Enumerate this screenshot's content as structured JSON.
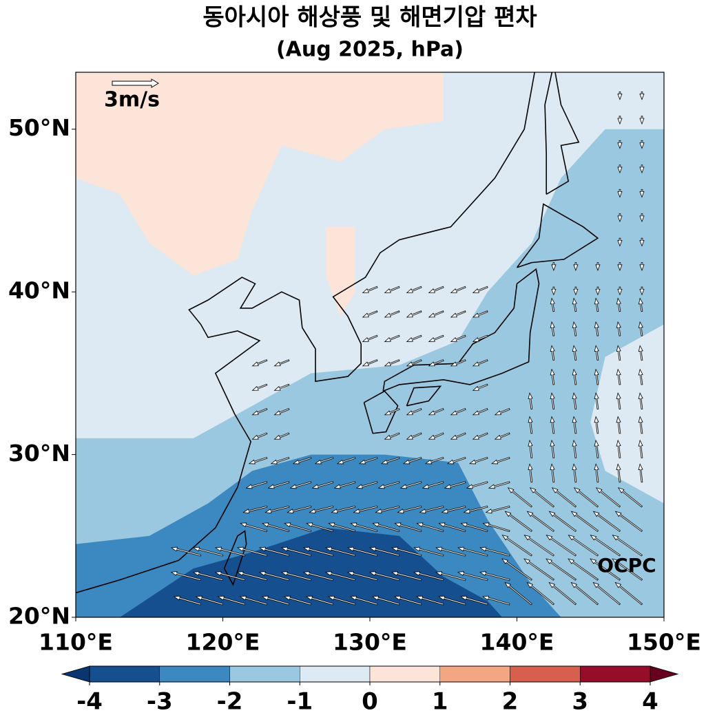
{
  "chart_data": {
    "type": "map",
    "title": "동아시아 해상풍 및 해면기압 편차",
    "subtitle": "(Aug 2025, hPa)",
    "reference_label": "3m/s",
    "watermark": "OCPC",
    "xlim": [
      110,
      150
    ],
    "ylim": [
      20,
      53.5
    ],
    "xticks": [
      {
        "value": 110,
        "label": "110°E"
      },
      {
        "value": 120,
        "label": "120°E"
      },
      {
        "value": 130,
        "label": "130°E"
      },
      {
        "value": 140,
        "label": "140°E"
      },
      {
        "value": 150,
        "label": "150°E"
      }
    ],
    "yticks": [
      {
        "value": 20,
        "label": "20°N"
      },
      {
        "value": 30,
        "label": "30°N"
      },
      {
        "value": 40,
        "label": "40°N"
      },
      {
        "value": 50,
        "label": "50°N"
      }
    ],
    "colorbar": {
      "ticks": [
        -4,
        -3,
        -2,
        -1,
        0,
        1,
        2,
        3,
        4
      ],
      "colors": [
        "#154f8f",
        "#3c88c0",
        "#9ac8e0",
        "#ddeaf3",
        "#fce4d8",
        "#f4a582",
        "#d6604d",
        "#960d27"
      ],
      "extend_colors": [
        "#0b3570",
        "#67001f"
      ]
    }
  }
}
